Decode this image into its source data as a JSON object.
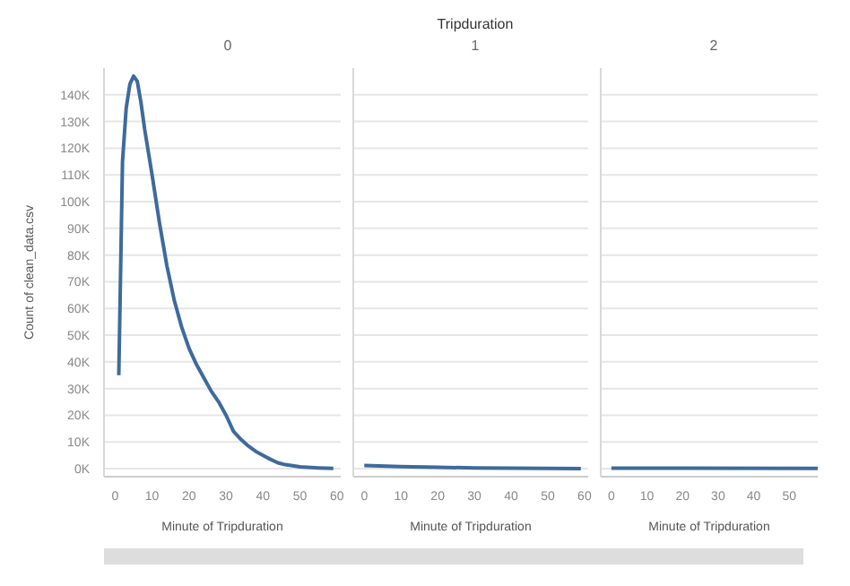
{
  "chart_data": [
    {
      "type": "line",
      "title": "0",
      "xlabel": "Minute of Tripduration",
      "ylabel": "Count of clean_data.csv",
      "grid": "y",
      "color": "#3e6a9c",
      "x": [
        1,
        2,
        3,
        4,
        5,
        6,
        7,
        8,
        10,
        12,
        14,
        16,
        18,
        20,
        22,
        24,
        26,
        28,
        30,
        32,
        34,
        36,
        38,
        40,
        42,
        44,
        46,
        50,
        55,
        59
      ],
      "values": [
        35000,
        115000,
        135000,
        144000,
        147000,
        145000,
        137000,
        127000,
        110000,
        92000,
        76000,
        63000,
        53000,
        45000,
        39000,
        34000,
        29000,
        25000,
        20000,
        14000,
        11000,
        8500,
        6500,
        5000,
        3500,
        2200,
        1500,
        700,
        300,
        100
      ],
      "xlim": [
        -3,
        61
      ],
      "xticks": [
        0,
        10,
        20,
        30,
        40,
        50,
        60
      ],
      "ylim": [
        -3000,
        150000
      ],
      "yticks": [
        {
          "value": 0,
          "label": "0K"
        },
        {
          "value": 10000,
          "label": "10K"
        },
        {
          "value": 20000,
          "label": "20K"
        },
        {
          "value": 30000,
          "label": "30K"
        },
        {
          "value": 40000,
          "label": "40K"
        },
        {
          "value": 50000,
          "label": "50K"
        },
        {
          "value": 60000,
          "label": "60K"
        },
        {
          "value": 70000,
          "label": "70K"
        },
        {
          "value": 80000,
          "label": "80K"
        },
        {
          "value": 90000,
          "label": "90K"
        },
        {
          "value": 100000,
          "label": "100K"
        },
        {
          "value": 110000,
          "label": "110K"
        },
        {
          "value": 120000,
          "label": "120K"
        },
        {
          "value": 130000,
          "label": "130K"
        },
        {
          "value": 140000,
          "label": "140K"
        }
      ]
    },
    {
      "type": "line",
      "title": "Tripduration",
      "subtitle": "1",
      "xlabel": "Minute of Tripduration",
      "grid": "y",
      "tick_labels": "x",
      "color": "#3e6a9c",
      "x": [
        0,
        10,
        20,
        30,
        40,
        50,
        59
      ],
      "values": [
        1200,
        800,
        500,
        300,
        200,
        100,
        50
      ],
      "xlim": [
        -3,
        61
      ],
      "xticks": [
        0,
        10,
        20,
        30,
        40,
        50,
        60
      ],
      "ylim": [
        -3000,
        150000
      ],
      "yticks": [
        0,
        10000,
        20000,
        30000,
        40000,
        50000,
        60000,
        70000,
        80000,
        90000,
        100000,
        110000,
        120000,
        130000,
        140000
      ]
    },
    {
      "type": "line",
      "title": "2",
      "xlabel": "Minute of Tripduration",
      "grid": "y",
      "tick_labels": "x",
      "color": "#3e6a9c",
      "x": [
        0,
        58
      ],
      "values": [
        200,
        100
      ],
      "xlim": [
        -3,
        58
      ],
      "xticks": [
        0,
        10,
        20,
        30,
        40,
        50
      ],
      "ylim": [
        -3000,
        150000
      ],
      "yticks": [
        0,
        10000,
        20000,
        30000,
        40000,
        50000,
        60000,
        70000,
        80000,
        90000,
        100000,
        110000,
        120000,
        130000,
        140000
      ]
    }
  ]
}
